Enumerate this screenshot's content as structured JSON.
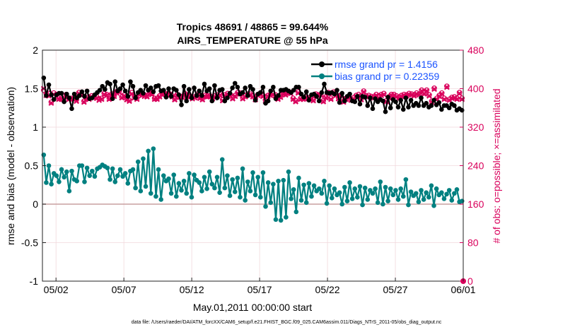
{
  "chart_data": {
    "type": "line",
    "title_line1": "Tropics 48691 / 48865 = 99.644%",
    "title_line2": "AIRS_TEMPERATURE @ 55 hPa",
    "xlabel": "May.01,2011 00:00:00 start",
    "ylabel_left": "rmse and bias (model - observation)",
    "ylabel_right": "# of obs: o=possible; ×=assimilated",
    "footer": "data file: /Users/raeder/DAI/ATM_forcXX/CAM6_setup/f.e21.FHIST_BGC.f09_025.CAM6assim.011/Diags_NTrS_2011-05/obs_diag_output.nc",
    "xlim": [
      0,
      31
    ],
    "ylim_left": [
      -1,
      2
    ],
    "ylim_right": [
      0,
      480
    ],
    "xticks": [
      1,
      6,
      11,
      16,
      21,
      26,
      31
    ],
    "xtick_labels": [
      "05/02",
      "05/07",
      "05/12",
      "05/17",
      "05/22",
      "05/27",
      "06/01"
    ],
    "yticks_left": [
      "2",
      "1.5",
      "1",
      "0.5",
      "0",
      "-0.5",
      "-1"
    ],
    "yticks_right": [
      "480",
      "400",
      "320",
      "240",
      "160",
      "80",
      "0"
    ],
    "grid": true,
    "legend_position": "top-right",
    "colors": {
      "rmse": "#000000",
      "bias": "#008080",
      "obs": "#d9005b",
      "legend_text": "#1a53ff",
      "zero_line": "#c8a0a0",
      "grid": "#f0d8dc"
    },
    "series": [
      {
        "name": "rmse grand pr = 1.4156",
        "axis": "left",
        "values": [
          1.64,
          1.41,
          1.55,
          1.42,
          1.36,
          1.42,
          1.44,
          1.44,
          1.33,
          1.43,
          1.38,
          1.24,
          1.43,
          1.38,
          1.41,
          1.46,
          1.4,
          1.47,
          1.37,
          1.38,
          1.42,
          1.45,
          1.48,
          1.53,
          1.49,
          1.58,
          1.56,
          1.37,
          1.59,
          1.47,
          1.5,
          1.55,
          1.47,
          1.4,
          1.59,
          1.53,
          1.38,
          1.45,
          1.48,
          1.44,
          1.54,
          1.48,
          1.51,
          1.46,
          1.53,
          1.54,
          1.47,
          1.48,
          1.39,
          1.5,
          1.4,
          1.5,
          1.48,
          1.42,
          1.29,
          1.53,
          1.34,
          1.49,
          1.38,
          1.51,
          1.41,
          1.47,
          1.41,
          1.56,
          1.47,
          1.5,
          1.34,
          1.54,
          1.38,
          1.48,
          1.49,
          1.34,
          1.38,
          1.44,
          1.51,
          1.57,
          1.52,
          1.43,
          1.45,
          1.51,
          1.41,
          1.53,
          1.49,
          1.35,
          1.43,
          1.45,
          1.52,
          1.31,
          1.34,
          1.47,
          1.52,
          1.37,
          1.41,
          1.48,
          1.48,
          1.49,
          1.47,
          1.45,
          1.48,
          1.52,
          1.52,
          1.43,
          1.39,
          1.46,
          1.35,
          1.42,
          1.43,
          1.4,
          1.34,
          1.45,
          1.56,
          1.45,
          1.44,
          1.45,
          1.43,
          1.48,
          1.32,
          1.44,
          1.34,
          1.4,
          1.43,
          1.34,
          1.33,
          1.4,
          1.3,
          1.4,
          1.39,
          1.28,
          1.38,
          1.24,
          1.37,
          1.33,
          1.36,
          1.34,
          1.2,
          1.39,
          1.25,
          1.36,
          1.33,
          1.26,
          1.35,
          1.23,
          1.38,
          1.26,
          1.35,
          1.28,
          1.31,
          1.28,
          1.38,
          1.28,
          1.31,
          1.26,
          1.28,
          1.35,
          1.29,
          1.32,
          1.23,
          1.28,
          1.28,
          1.25,
          1.3,
          1.28,
          1.22,
          1.24,
          1.22
        ]
      },
      {
        "name": "bias grand pr = 0.22359",
        "axis": "left",
        "values": [
          0.64,
          0.28,
          0.5,
          0.26,
          0.4,
          0.37,
          0.29,
          0.45,
          0.35,
          0.42,
          0.17,
          0.43,
          0.32,
          0.3,
          0.5,
          0.5,
          0.29,
          0.47,
          0.37,
          0.43,
          0.36,
          0.46,
          0.48,
          0.51,
          0.49,
          0.47,
          0.32,
          0.46,
          0.29,
          0.37,
          0.45,
          0.36,
          0.4,
          0.27,
          0.43,
          0.45,
          0.21,
          0.55,
          0.17,
          0.59,
          0.23,
          0.69,
          0.14,
          0.72,
          0.1,
          0.45,
          0.06,
          0.37,
          0.3,
          0.33,
          0.14,
          0.38,
          0.1,
          0.27,
          0.18,
          0.3,
          0.14,
          0.4,
          0.09,
          0.38,
          0.31,
          0.28,
          0.17,
          0.35,
          0.2,
          0.42,
          0.26,
          0.21,
          0.35,
          0.15,
          0.58,
          0.21,
          0.37,
          0.11,
          0.32,
          0.16,
          0.34,
          0.09,
          0.46,
          0.05,
          0.29,
          0.17,
          0.41,
          0.12,
          0.35,
          0.09,
          0.41,
          -0.03,
          0.28,
          0.02,
          0.26,
          -0.2,
          0.3,
          -0.21,
          0.31,
          -0.17,
          0.42,
          0.07,
          0.19,
          -0.1,
          0.34,
          0.05,
          0.25,
          0.02,
          0.27,
          0.1,
          0.24,
          0.17,
          0.2,
          0.14,
          0.3,
          0.01,
          0.24,
          0.08,
          0.2,
          0.12,
          0.15,
          0.0,
          0.22,
          0.04,
          0.28,
          0.07,
          0.2,
          0.09,
          0.23,
          -0.01,
          0.21,
          0.06,
          0.18,
          0.14,
          0.2,
          0.02,
          0.29,
          0.0,
          0.22,
          0.04,
          0.2,
          0.12,
          0.18,
          0.06,
          0.2,
          0.1,
          0.32,
          -0.01,
          0.16,
          0.11,
          0.14,
          0.03,
          0.18,
          0.06,
          0.15,
          0.09,
          0.24,
          -0.02,
          0.2,
          0.12,
          0.15,
          0.07,
          0.13,
          0.18,
          0.05,
          0.14,
          0.19,
          0.03,
          0.04
        ]
      },
      {
        "name": "obs possible",
        "axis": "right",
        "marker": "circle",
        "values": [
          397,
          390,
          390,
          372,
          391,
          388,
          380,
          380,
          380,
          388,
          380,
          380,
          380,
          377,
          392,
          388,
          374,
          382,
          380,
          385,
          384,
          383,
          379,
          380,
          390,
          388,
          380,
          389,
          386,
          394,
          395,
          383,
          387,
          379,
          376,
          392,
          383,
          380,
          390,
          388,
          387,
          385,
          392,
          390,
          380,
          380,
          385,
          390,
          391,
          389,
          389,
          385,
          379,
          388,
          384,
          384,
          390,
          386,
          385,
          381,
          383,
          388,
          382,
          379,
          386,
          385,
          385,
          381,
          385,
          387,
          388,
          377,
          387,
          390,
          388,
          381,
          386,
          392,
          391,
          381,
          385,
          389,
          389,
          385,
          379,
          388,
          391,
          386,
          376,
          386,
          388,
          390,
          387,
          380,
          384,
          391,
          389,
          393,
          392,
          380,
          375,
          393,
          380,
          380,
          382,
          381,
          380,
          377,
          389,
          387,
          388,
          375,
          383,
          392,
          380,
          393,
          388,
          381,
          387,
          374,
          380,
          384,
          378,
          381,
          386,
          388,
          379,
          395,
          385,
          386,
          384,
          383,
          388,
          383,
          388,
          390,
          375,
          383,
          388,
          388,
          385,
          382,
          386,
          388,
          387,
          390,
          389,
          387,
          391,
          389,
          397,
          391,
          397,
          387,
          374,
          401,
          380,
          386,
          391,
          380,
          405,
          378,
          382,
          383,
          380,
          392,
          380
        ]
      },
      {
        "name": "obs assimilated",
        "axis": "right",
        "marker": "x",
        "values": [
          400,
          386,
          385,
          370,
          388,
          384,
          378,
          378,
          377,
          386,
          378,
          378,
          378,
          374,
          390,
          386,
          372,
          380,
          378,
          383,
          381,
          380,
          376,
          378,
          388,
          386,
          378,
          386,
          384,
          391,
          393,
          381,
          385,
          377,
          374,
          389,
          381,
          378,
          388,
          386,
          384,
          383,
          390,
          388,
          378,
          378,
          383,
          388,
          389,
          387,
          387,
          383,
          377,
          386,
          382,
          382,
          388,
          384,
          383,
          379,
          381,
          386,
          380,
          377,
          384,
          383,
          383,
          379,
          383,
          385,
          386,
          375,
          385,
          388,
          386,
          379,
          384,
          390,
          389,
          379,
          383,
          387,
          387,
          383,
          377,
          386,
          389,
          384,
          374,
          384,
          386,
          388,
          385,
          378,
          382,
          389,
          387,
          391,
          390,
          378,
          373,
          391,
          378,
          378,
          380,
          379,
          378,
          375,
          387,
          385,
          386,
          373,
          381,
          390,
          378,
          391,
          386,
          379,
          385,
          372,
          378,
          382,
          376,
          379,
          384,
          386,
          377,
          393,
          383,
          384,
          382,
          381,
          386,
          381,
          386,
          388,
          373,
          381,
          386,
          386,
          383,
          380,
          384,
          386,
          385,
          388,
          387,
          385,
          389,
          387,
          395,
          389,
          395,
          385,
          372,
          399,
          378,
          384,
          389,
          378,
          403,
          376,
          380,
          381,
          378,
          390,
          378
        ]
      }
    ]
  }
}
